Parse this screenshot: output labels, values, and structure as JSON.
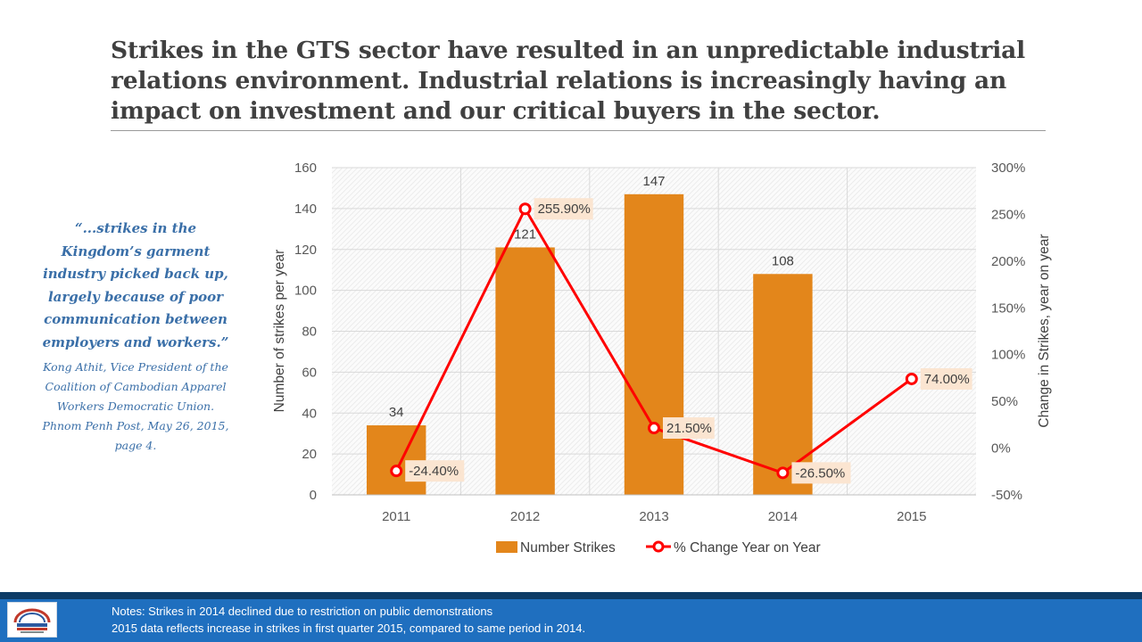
{
  "slide": {
    "title": "Strikes in the GTS sector have resulted in an unpredictable industrial relations environment.  Industrial relations is increasingly having an impact on investment and our critical buyers in the sector."
  },
  "quote": {
    "text": "“...strikes in the Kingdom’s garment industry picked back up, largely because of poor communication between employers and workers.”",
    "attribution": "Kong Athit, Vice President of the Coalition of Cambodian Apparel Workers Democratic Union. Phnom Penh Post, May 26, 2015, page 4."
  },
  "chart_data": {
    "type": "bar",
    "categories": [
      "2011",
      "2012",
      "2013",
      "2014",
      "2015"
    ],
    "ylabel": "Number of strikes per year",
    "y2label": "Change in Strikes, year on year",
    "ylim": [
      0,
      160
    ],
    "yticks": [
      "0",
      "20",
      "40",
      "60",
      "80",
      "100",
      "120",
      "140",
      "160"
    ],
    "y2lim": [
      -50,
      300
    ],
    "y2ticks": [
      "-50%",
      "0%",
      "50%",
      "100%",
      "150%",
      "200%",
      "250%",
      "300%"
    ],
    "grid": true,
    "legend_position": "bottom",
    "series": [
      {
        "name": "Number Strikes",
        "type": "bar",
        "axis": "left",
        "values": [
          34,
          121,
          147,
          108,
          null
        ],
        "labels": [
          "34",
          "121",
          "147",
          "108",
          ""
        ],
        "color": "#e3861b"
      },
      {
        "name": "% Change Year on Year",
        "type": "line",
        "axis": "right",
        "values": [
          -24.4,
          255.9,
          21.5,
          -26.5,
          74.0
        ],
        "labels": [
          "-24.40%",
          "255.90%",
          "21.50%",
          "-26.50%",
          "74.00%"
        ],
        "color": "#ff0000"
      }
    ]
  },
  "footer": {
    "notes_line1": "Notes:  Strikes in 2014 declined due to restriction on public demonstrations",
    "notes_line2": "2015 data reflects increase in strikes in first quarter 2015, compared to same period in 2014."
  }
}
